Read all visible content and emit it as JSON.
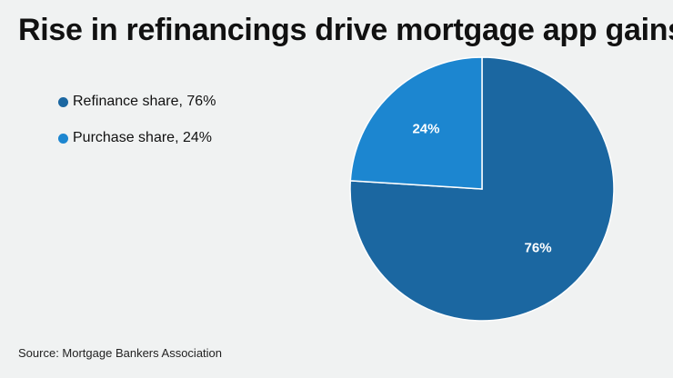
{
  "title": "Rise in refinancings drive mortgage app gains",
  "source": "Source: Mortgage Bankers Association",
  "chart_data": {
    "type": "pie",
    "title": "Rise in refinancings drive mortgage app gains",
    "slices": [
      {
        "name": "Refinance share",
        "value": 76,
        "label": "76%",
        "legend_label": "Refinance share, 76%",
        "color": "#1b67a1"
      },
      {
        "name": "Purchase share",
        "value": 24,
        "label": "24%",
        "legend_label": "Purchase share, 24%",
        "color": "#1c86d0"
      }
    ],
    "legend_position": "top-left"
  }
}
